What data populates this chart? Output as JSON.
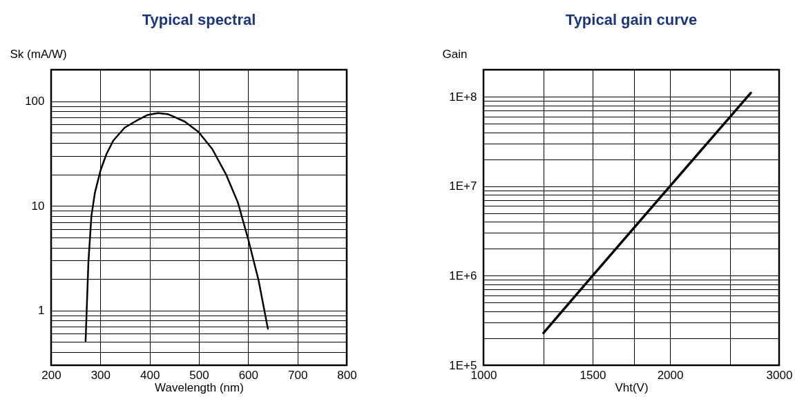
{
  "chart_data": [
    {
      "type": "line",
      "title": "Typical spectral",
      "xlabel": "Wavelength (nm)",
      "ylabel": "Sk (mA/W)",
      "log": "y",
      "grid": true,
      "x": [
        270,
        275.7,
        281.8,
        288.8,
        300.5,
        312,
        326,
        349.5,
        373,
        396,
        417,
        438,
        471,
        499,
        527,
        555,
        579,
        600,
        621,
        640
      ],
      "series": [
        {
          "color": "#000000",
          "values": [
            0.51,
            2.9,
            8.0,
            13.3,
            22,
            31,
            42,
            56,
            65,
            74,
            77,
            75,
            64,
            51,
            35,
            20,
            10.8,
            4.8,
            1.95,
            0.67
          ]
        }
      ],
      "xlim": [
        200,
        800
      ],
      "xticks": [
        200,
        300,
        400,
        500,
        600,
        700,
        800
      ],
      "ylim": [
        0.3,
        200
      ],
      "yticks": [
        {
          "value": 0.4,
          "label": null
        },
        {
          "value": 0.5,
          "label": null
        },
        {
          "value": 0.6,
          "label": null
        },
        {
          "value": 0.7,
          "label": null
        },
        {
          "value": 0.8,
          "label": null
        },
        {
          "value": 0.9,
          "label": null
        },
        1,
        {
          "value": 2,
          "label": null
        },
        {
          "value": 3,
          "label": null
        },
        {
          "value": 4,
          "label": null
        },
        {
          "value": 5,
          "label": null
        },
        {
          "value": 6,
          "label": null
        },
        {
          "value": 7,
          "label": null
        },
        {
          "value": 8,
          "label": null
        },
        {
          "value": 9,
          "label": null
        },
        10,
        {
          "value": 20,
          "label": null
        },
        {
          "value": 30,
          "label": null
        },
        {
          "value": 40,
          "label": null
        },
        {
          "value": 50,
          "label": null
        },
        {
          "value": 60,
          "label": null
        },
        {
          "value": 70,
          "label": null
        },
        {
          "value": 80,
          "label": null
        },
        {
          "value": 90,
          "label": null
        },
        100
      ]
    },
    {
      "type": "line",
      "title": "Typical gain curve",
      "xlabel": "Vht(V)",
      "ylabel": "Gain",
      "log": "xy",
      "grid": true,
      "x": [
        1250,
        1500,
        2000,
        2700
      ],
      "series": [
        {
          "color": "#000000",
          "values": [
            230000,
            1000000,
            10000000,
            110000000
          ]
        }
      ],
      "xlim": [
        1000,
        3000
      ],
      "xticks": [
        1000,
        {
          "value": 1250,
          "label": null
        },
        1500,
        {
          "value": 1750,
          "label": null
        },
        2000,
        {
          "value": 2500,
          "label": null
        },
        3000
      ],
      "ylim": [
        100000,
        200000000
      ],
      "yticks": [
        {
          "value": 100000,
          "label": "1E+5"
        },
        {
          "value": 200000,
          "label": null
        },
        {
          "value": 300000,
          "label": null
        },
        {
          "value": 400000,
          "label": null
        },
        {
          "value": 500000,
          "label": null
        },
        {
          "value": 600000,
          "label": null
        },
        {
          "value": 700000,
          "label": null
        },
        {
          "value": 800000,
          "label": null
        },
        {
          "value": 900000,
          "label": null
        },
        {
          "value": 1000000,
          "label": "1E+6"
        },
        {
          "value": 2000000,
          "label": null
        },
        {
          "value": 3000000,
          "label": null
        },
        {
          "value": 4000000,
          "label": null
        },
        {
          "value": 5000000,
          "label": null
        },
        {
          "value": 6000000,
          "label": null
        },
        {
          "value": 7000000,
          "label": null
        },
        {
          "value": 8000000,
          "label": null
        },
        {
          "value": 9000000,
          "label": null
        },
        {
          "value": 10000000,
          "label": "1E+7"
        },
        {
          "value": 20000000,
          "label": null
        },
        {
          "value": 30000000,
          "label": null
        },
        {
          "value": 40000000,
          "label": null
        },
        {
          "value": 50000000,
          "label": null
        },
        {
          "value": 60000000,
          "label": null
        },
        {
          "value": 70000000,
          "label": null
        },
        {
          "value": 80000000,
          "label": null
        },
        {
          "value": 90000000,
          "label": null
        },
        {
          "value": 100000000,
          "label": "1E+8"
        }
      ]
    }
  ]
}
